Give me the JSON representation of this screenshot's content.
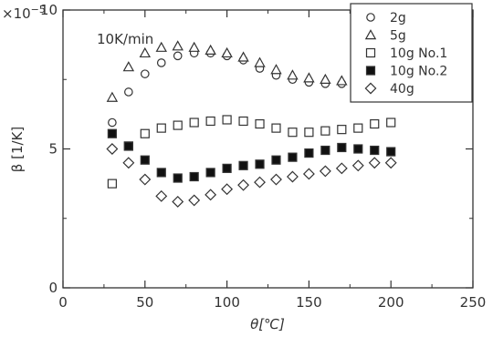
{
  "chart_data": {
    "type": "scatter",
    "exponent_label": "×10",
    "exponent_power": "−5",
    "annotation": "10K/min",
    "xlabel": "θ[℃]",
    "ylabel": "β [1/K]",
    "xlim": [
      0,
      250
    ],
    "ylim": [
      0,
      10
    ],
    "x_ticks": [
      0,
      50,
      100,
      150,
      200,
      250
    ],
    "y_ticks": [
      0,
      5,
      10
    ],
    "x_tick_labels": [
      "0",
      "50",
      "100",
      "150",
      "200",
      "250"
    ],
    "y_tick_labels": [
      "0",
      "5",
      "10"
    ],
    "grid": false,
    "legend_position": "top-right",
    "series": [
      {
        "name": "2g",
        "marker": "circle-open",
        "x": [
          30,
          40,
          50,
          60,
          70,
          80,
          90,
          100,
          110,
          120,
          130,
          140,
          150,
          160,
          170,
          180,
          190,
          200
        ],
        "y": [
          5.95,
          7.05,
          7.7,
          8.1,
          8.35,
          8.45,
          8.45,
          8.35,
          8.2,
          7.9,
          7.65,
          7.5,
          7.4,
          7.35,
          7.35,
          7.4,
          7.45,
          7.45
        ]
      },
      {
        "name": "5g",
        "marker": "triangle-open",
        "x": [
          30,
          40,
          50,
          60,
          70,
          80,
          90,
          100,
          110,
          120,
          130,
          140,
          150,
          160,
          170,
          180,
          190,
          200
        ],
        "y": [
          6.85,
          7.95,
          8.45,
          8.65,
          8.7,
          8.65,
          8.55,
          8.45,
          8.3,
          8.1,
          7.85,
          7.65,
          7.55,
          7.5,
          7.45,
          7.45,
          7.5,
          7.5
        ]
      },
      {
        "name": "10g No.1",
        "marker": "square-open",
        "x": [
          30,
          40,
          50,
          60,
          70,
          80,
          90,
          100,
          110,
          120,
          130,
          140,
          150,
          160,
          170,
          180,
          190,
          200
        ],
        "y": [
          3.75,
          5.1,
          5.55,
          5.75,
          5.85,
          5.95,
          6.0,
          6.05,
          6.0,
          5.9,
          5.75,
          5.6,
          5.6,
          5.65,
          5.7,
          5.75,
          5.9,
          5.95
        ]
      },
      {
        "name": "10g No.2",
        "marker": "square-filled",
        "x": [
          30,
          40,
          50,
          60,
          70,
          80,
          90,
          100,
          110,
          120,
          130,
          140,
          150,
          160,
          170,
          180,
          190,
          200
        ],
        "y": [
          5.55,
          5.1,
          4.6,
          4.15,
          3.95,
          4.0,
          4.15,
          4.3,
          4.4,
          4.45,
          4.6,
          4.7,
          4.85,
          4.95,
          5.05,
          5.0,
          4.95,
          4.9
        ]
      },
      {
        "name": "40g",
        "marker": "diamond-open",
        "x": [
          30,
          40,
          50,
          60,
          70,
          80,
          90,
          100,
          110,
          120,
          130,
          140,
          150,
          160,
          170,
          180,
          190,
          200
        ],
        "y": [
          5.0,
          4.5,
          3.9,
          3.3,
          3.1,
          3.15,
          3.35,
          3.55,
          3.7,
          3.8,
          3.9,
          4.0,
          4.1,
          4.2,
          4.3,
          4.4,
          4.5,
          4.5
        ]
      }
    ]
  }
}
